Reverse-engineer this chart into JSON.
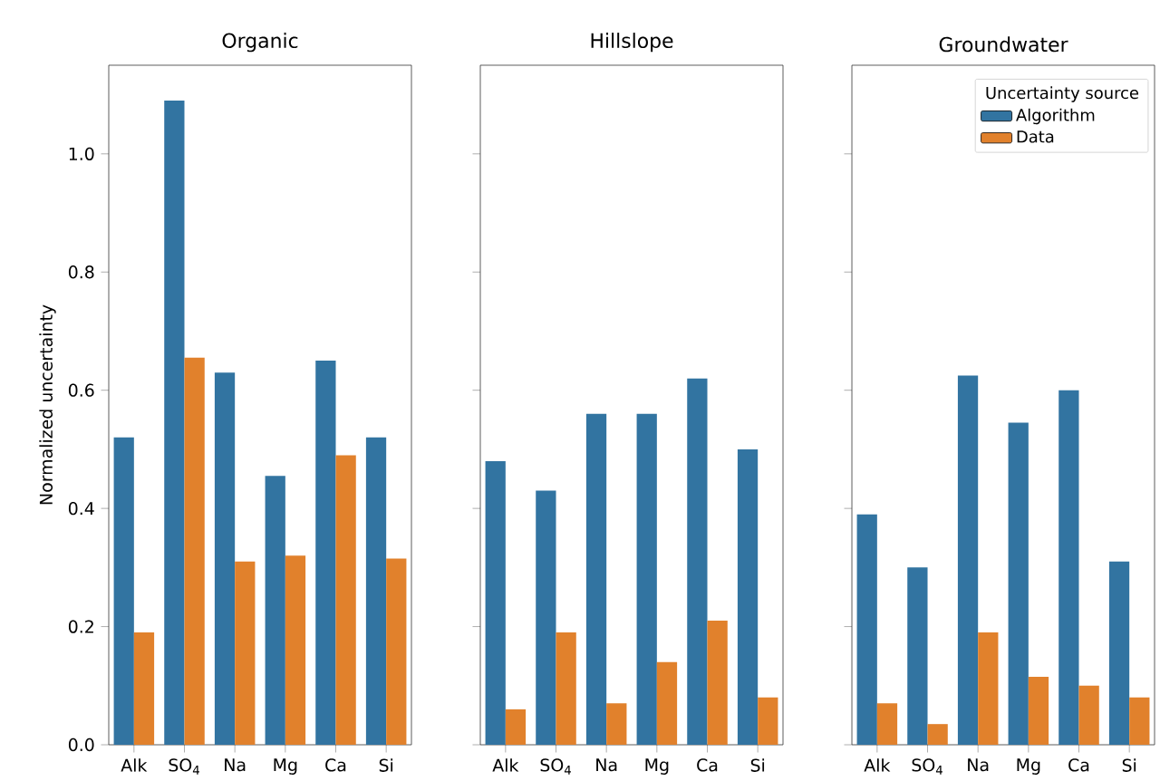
{
  "chart_data": [
    {
      "type": "bar",
      "title": "Organic",
      "ylabel": "Normalized uncertainty",
      "categories": [
        "Alk",
        "SO$_{4}$",
        "Na",
        "Mg",
        "Ca",
        "Si"
      ],
      "ylim": [
        0,
        1.15
      ],
      "yticks": [
        {
          "value": 0,
          "label": "0.0"
        },
        {
          "value": 0.2,
          "label": "0.2"
        },
        {
          "value": 0.4,
          "label": "0.4"
        },
        {
          "value": 0.6,
          "label": "0.6"
        },
        {
          "value": 0.8,
          "label": "0.8"
        },
        {
          "value": 1.0,
          "label": "1.0"
        }
      ],
      "series": [
        {
          "color": "#3274a1",
          "values": [
            0.52,
            1.09,
            0.63,
            0.455,
            0.65,
            0.52
          ]
        },
        {
          "color": "#e1812c",
          "values": [
            0.19,
            0.655,
            0.31,
            0.32,
            0.49,
            0.315
          ]
        }
      ]
    },
    {
      "type": "bar",
      "title": "Hillslope",
      "categories": [
        "Alk",
        "SO$_{4}$",
        "Na",
        "Mg",
        "Ca",
        "Si"
      ],
      "ylim": [
        0,
        1.15
      ],
      "yticks": [
        {
          "value": 0,
          "label": null
        },
        {
          "value": 0.2,
          "label": null
        },
        {
          "value": 0.4,
          "label": null
        },
        {
          "value": 0.6,
          "label": null
        },
        {
          "value": 0.8,
          "label": null
        },
        {
          "value": 1.0,
          "label": null
        }
      ],
      "tick_labels": "x",
      "series": [
        {
          "color": "#3274a1",
          "values": [
            0.48,
            0.43,
            0.56,
            0.56,
            0.62,
            0.5
          ]
        },
        {
          "color": "#e1812c",
          "values": [
            0.06,
            0.19,
            0.07,
            0.14,
            0.21,
            0.08
          ]
        }
      ]
    },
    {
      "type": "bar",
      "title": "Groundwater",
      "legend_title": "Uncertainty source",
      "legend": "top right",
      "categories": [
        "Alk",
        "SO$_{4}$",
        "Na",
        "Mg",
        "Ca",
        "Si"
      ],
      "ylim": [
        0,
        1.15
      ],
      "yticks": [
        {
          "value": 0,
          "label": null
        },
        {
          "value": 0.2,
          "label": null
        },
        {
          "value": 0.4,
          "label": null
        },
        {
          "value": 0.6,
          "label": null
        },
        {
          "value": 0.8,
          "label": null
        },
        {
          "value": 1.0,
          "label": null
        }
      ],
      "tick_labels": "x",
      "series": [
        {
          "name": "Algorithm",
          "color": "#3274a1",
          "values": [
            0.39,
            0.3,
            0.625,
            0.545,
            0.6,
            0.31
          ]
        },
        {
          "name": "Data",
          "color": "#e1812c",
          "values": [
            0.07,
            0.035,
            0.19,
            0.115,
            0.1,
            0.08
          ]
        }
      ]
    }
  ]
}
